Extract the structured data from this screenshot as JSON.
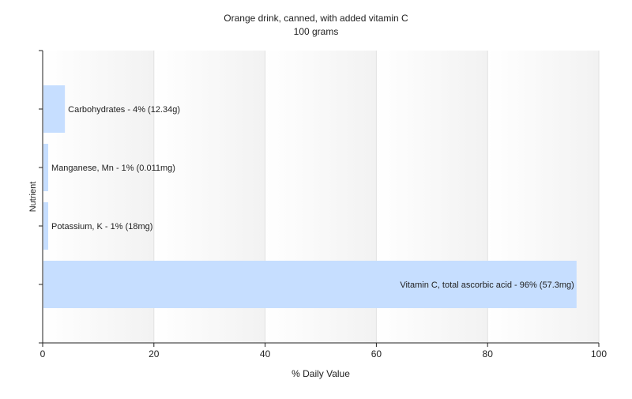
{
  "chart_data": {
    "type": "bar",
    "orientation": "horizontal",
    "title": "Orange drink, canned, with added vitamin C",
    "subtitle": "100 grams",
    "xlabel": "% Daily Value",
    "ylabel": "Nutrient",
    "xlim": [
      0,
      100
    ],
    "x_ticks": [
      0,
      20,
      40,
      60,
      80,
      100
    ],
    "grid": true,
    "bar_color": "#c6deff",
    "categories": [
      "Carbohydrates",
      "Manganese, Mn",
      "Potassium, K",
      "Vitamin C, total ascorbic acid"
    ],
    "values": [
      4,
      1,
      1,
      96
    ],
    "data_labels": [
      "Carbohydrates - 4% (12.34g)",
      "Manganese, Mn - 1% (0.011mg)",
      "Potassium, K - 1% (18mg)",
      "Vitamin C, total ascorbic acid - 96% (57.3mg)"
    ]
  }
}
